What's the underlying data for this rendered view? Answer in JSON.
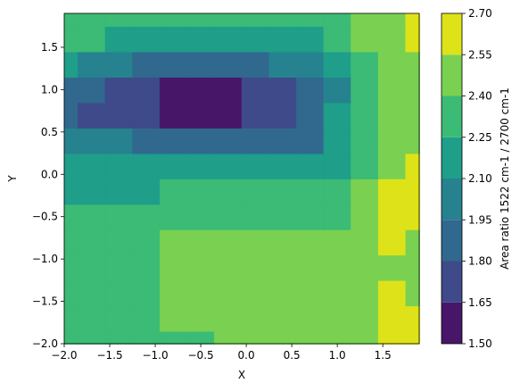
{
  "chart_data": {
    "type": "contour",
    "xlabel": "X",
    "ylabel": "Y",
    "colorbar_label": "Area ratio 1522 cm-1 / 2700 cm-1",
    "x": [
      -2,
      -1.7,
      -1.4,
      -1.1,
      -0.8,
      -0.5,
      -0.2,
      0.1,
      0.4,
      0.7,
      1.0,
      1.3,
      1.6,
      1.9
    ],
    "y": [
      -2,
      -1.7,
      -1.4,
      -1.1,
      -0.8,
      -0.5,
      -0.2,
      0.1,
      0.4,
      0.7,
      1.0,
      1.3,
      1.6,
      1.9
    ],
    "z": [
      [
        2.3,
        2.3,
        2.3,
        2.3,
        2.3,
        2.35,
        2.45,
        2.45,
        2.45,
        2.45,
        2.45,
        2.5,
        2.6,
        2.6
      ],
      [
        2.3,
        2.3,
        2.3,
        2.3,
        2.45,
        2.45,
        2.45,
        2.45,
        2.45,
        2.45,
        2.45,
        2.5,
        2.6,
        2.6
      ],
      [
        2.3,
        2.3,
        2.3,
        2.3,
        2.45,
        2.45,
        2.45,
        2.45,
        2.45,
        2.45,
        2.45,
        2.45,
        2.6,
        2.5
      ],
      [
        2.3,
        2.3,
        2.3,
        2.3,
        2.45,
        2.45,
        2.45,
        2.45,
        2.45,
        2.45,
        2.45,
        2.45,
        2.5,
        2.45
      ],
      [
        2.3,
        2.3,
        2.3,
        2.3,
        2.45,
        2.45,
        2.45,
        2.45,
        2.45,
        2.45,
        2.45,
        2.45,
        2.6,
        2.5
      ],
      [
        2.3,
        2.3,
        2.3,
        2.3,
        2.3,
        2.3,
        2.3,
        2.3,
        2.3,
        2.3,
        2.35,
        2.45,
        2.6,
        2.6
      ],
      [
        2.2,
        2.2,
        2.2,
        2.2,
        2.3,
        2.3,
        2.3,
        2.3,
        2.3,
        2.3,
        2.35,
        2.45,
        2.6,
        2.6
      ],
      [
        2.15,
        2.15,
        2.15,
        2.15,
        2.15,
        2.15,
        2.15,
        2.15,
        2.15,
        2.15,
        2.2,
        2.3,
        2.45,
        2.6
      ],
      [
        2.0,
        2.0,
        2.0,
        1.9,
        1.9,
        1.9,
        1.9,
        1.9,
        1.9,
        1.9,
        2.15,
        2.3,
        2.45,
        2.45
      ],
      [
        1.9,
        1.75,
        1.7,
        1.7,
        1.6,
        1.6,
        1.6,
        1.7,
        1.7,
        1.85,
        2.15,
        2.3,
        2.45,
        2.45
      ],
      [
        1.9,
        1.85,
        1.75,
        1.7,
        1.6,
        1.6,
        1.6,
        1.7,
        1.75,
        1.85,
        2.05,
        2.3,
        2.45,
        2.45
      ],
      [
        2.1,
        2.0,
        1.95,
        1.9,
        1.9,
        1.85,
        1.85,
        1.9,
        1.95,
        2.0,
        2.15,
        2.3,
        2.45,
        2.45
      ],
      [
        2.3,
        2.3,
        2.15,
        2.15,
        2.15,
        2.15,
        2.15,
        2.15,
        2.15,
        2.15,
        2.3,
        2.45,
        2.45,
        2.6
      ],
      [
        2.3,
        2.3,
        2.3,
        2.3,
        2.3,
        2.3,
        2.3,
        2.3,
        2.3,
        2.3,
        2.3,
        2.45,
        2.45,
        2.6
      ]
    ],
    "xlim": [
      -2,
      1.9
    ],
    "ylim": [
      -2,
      1.9
    ],
    "xticks": [
      {
        "value": -2,
        "label": "−2.0"
      },
      {
        "value": -1.5,
        "label": "−1.5"
      },
      {
        "value": -1,
        "label": "−1.0"
      },
      {
        "value": -0.5,
        "label": "−0.5"
      },
      {
        "value": 0,
        "label": "0.0"
      },
      {
        "value": 0.5,
        "label": "0.5"
      },
      {
        "value": 1,
        "label": "1.0"
      },
      {
        "value": 1.5,
        "label": "1.5"
      }
    ],
    "yticks": [
      {
        "value": -2,
        "label": "−2.0"
      },
      {
        "value": -1.5,
        "label": "−1.5"
      },
      {
        "value": -1,
        "label": "−1.0"
      },
      {
        "value": -0.5,
        "label": "−0.5"
      },
      {
        "value": 0,
        "label": "0.0"
      },
      {
        "value": 0.5,
        "label": "0.5"
      },
      {
        "value": 1,
        "label": "1.0"
      },
      {
        "value": 1.5,
        "label": "1.5"
      }
    ],
    "levels": [
      {
        "value": 1.5,
        "label": "1.50"
      },
      {
        "value": 1.65,
        "label": "1.65"
      },
      {
        "value": 1.8,
        "label": "1.80"
      },
      {
        "value": 1.95,
        "label": "1.95"
      },
      {
        "value": 2.1,
        "label": "2.10"
      },
      {
        "value": 2.25,
        "label": "2.25"
      },
      {
        "value": 2.4,
        "label": "2.40"
      },
      {
        "value": 2.55,
        "label": "2.55"
      },
      {
        "value": 2.7,
        "label": "2.70"
      }
    ],
    "colors": [
      "#481668",
      "#3e4a89",
      "#31688e",
      "#26828e",
      "#1f9e89",
      "#3bbb75",
      "#7ad151",
      "#dde318"
    ]
  }
}
